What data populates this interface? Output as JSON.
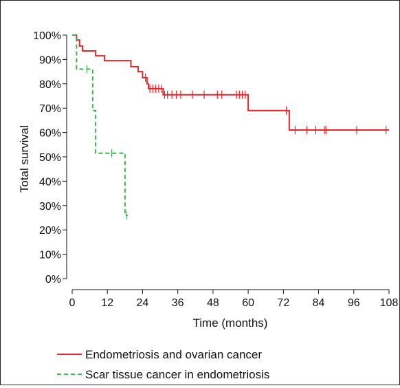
{
  "chart_data": {
    "type": "line",
    "subtype": "kaplan-meier",
    "title": "",
    "xlabel": "Time (months)",
    "ylabel": "Total survival",
    "xlim": [
      0,
      108
    ],
    "ylim": [
      0,
      100
    ],
    "x_ticks": [
      0,
      12,
      24,
      36,
      48,
      60,
      72,
      84,
      96,
      108
    ],
    "y_ticks": [
      0,
      10,
      20,
      30,
      40,
      50,
      60,
      70,
      80,
      90,
      100
    ],
    "y_tick_labels": [
      "0%",
      "10%",
      "20%",
      "30%",
      "40%",
      "50%",
      "60%",
      "70%",
      "80%",
      "90%",
      "100%"
    ],
    "grid": false,
    "legend_position": "bottom",
    "series": [
      {
        "name": "Endometriosis and ovarian cancer",
        "color": "#e8262a",
        "dash": "solid",
        "steps": [
          [
            0,
            100
          ],
          [
            1.5,
            98
          ],
          [
            2.5,
            95.5
          ],
          [
            3.5,
            93.5
          ],
          [
            8,
            91.5
          ],
          [
            11,
            89.5
          ],
          [
            20,
            87
          ],
          [
            22.5,
            85
          ],
          [
            24,
            82.5
          ],
          [
            25.5,
            80
          ],
          [
            26,
            78
          ],
          [
            31,
            75.5
          ],
          [
            60,
            69
          ],
          [
            74,
            61
          ],
          [
            108,
            61
          ]
        ],
        "censored": [
          [
            25,
            82.5
          ],
          [
            26.5,
            78
          ],
          [
            27.5,
            78
          ],
          [
            28.5,
            78
          ],
          [
            29.5,
            78
          ],
          [
            30.5,
            78
          ],
          [
            31.5,
            75.5
          ],
          [
            32.5,
            75.5
          ],
          [
            34,
            75.5
          ],
          [
            35.5,
            75.5
          ],
          [
            37,
            75.5
          ],
          [
            41,
            75.5
          ],
          [
            45,
            75.5
          ],
          [
            49.5,
            75.5
          ],
          [
            51,
            75.5
          ],
          [
            56,
            75.5
          ],
          [
            57,
            75.5
          ],
          [
            58,
            75.5
          ],
          [
            59,
            75.5
          ],
          [
            73,
            69
          ],
          [
            76,
            61
          ],
          [
            80,
            61
          ],
          [
            83,
            61
          ],
          [
            86,
            61
          ],
          [
            86.5,
            61
          ],
          [
            97,
            61
          ],
          [
            107,
            61
          ]
        ]
      },
      {
        "name": "Scar tissue cancer in endometriosis",
        "color": "#3cb44a",
        "dash": "dashed",
        "steps": [
          [
            0,
            100
          ],
          [
            1.5,
            86
          ],
          [
            7,
            69
          ],
          [
            8,
            51.5
          ],
          [
            18,
            26
          ],
          [
            19,
            26
          ]
        ],
        "censored": [
          [
            5,
            86
          ],
          [
            13.5,
            51.5
          ],
          [
            18.5,
            26
          ]
        ]
      }
    ]
  }
}
